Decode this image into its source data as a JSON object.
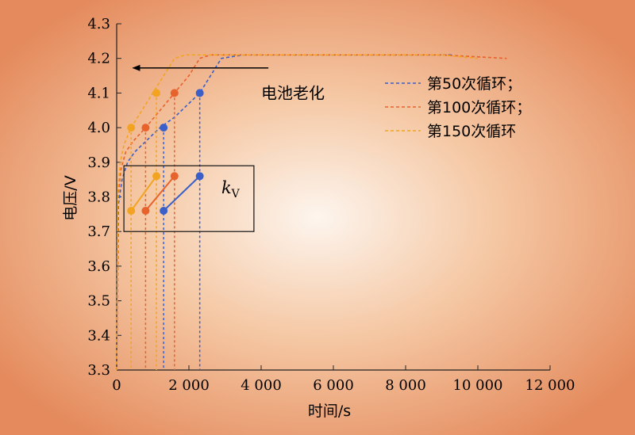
{
  "chart_data": {
    "type": "line",
    "xlabel": "时间/s",
    "ylabel": "电压/V",
    "xlim": [
      0,
      12000
    ],
    "ylim": [
      3.3,
      4.3
    ],
    "x_ticks": [
      0,
      2000,
      4000,
      6000,
      8000,
      10000,
      12000
    ],
    "x_tick_labels": [
      "0",
      "2 000",
      "4 000",
      "6 000",
      "8 000",
      "10 000",
      "12 000"
    ],
    "y_ticks": [
      3.3,
      3.4,
      3.5,
      3.6,
      3.7,
      3.8,
      3.9,
      4.0,
      4.1,
      4.2,
      4.3
    ],
    "y_tick_labels": [
      "3.3",
      "3.4",
      "3.5",
      "3.6",
      "3.7",
      "3.8",
      "3.9",
      "4.0",
      "4.1",
      "4.2",
      "4.3"
    ],
    "grid": false,
    "legend_position": "top-right",
    "series": [
      {
        "name": "第50次循环；",
        "color": "#3a5fc8",
        "x": [
          0,
          50,
          150,
          300,
          500,
          800,
          1200,
          1600,
          2000,
          2300,
          2600,
          2900,
          3500,
          5000,
          7000,
          9000,
          9300
        ],
        "y": [
          3.3,
          3.78,
          3.85,
          3.9,
          3.93,
          3.96,
          4.0,
          4.03,
          4.07,
          4.1,
          4.15,
          4.2,
          4.21,
          4.21,
          4.21,
          4.21,
          4.21
        ]
      },
      {
        "name": "第100次循环；",
        "color": "#e8622c",
        "x": [
          0,
          40,
          120,
          250,
          450,
          800,
          1200,
          1600,
          2000,
          2300,
          2600,
          3500,
          5000,
          7000,
          9000,
          10800
        ],
        "y": [
          3.3,
          3.8,
          3.88,
          3.93,
          3.96,
          4.0,
          4.05,
          4.1,
          4.15,
          4.2,
          4.21,
          4.21,
          4.21,
          4.21,
          4.21,
          4.2
        ]
      },
      {
        "name": "第150次循环",
        "color": "#f2a421",
        "x": [
          0,
          30,
          100,
          200,
          400,
          700,
          1000,
          1300,
          1600,
          1900,
          2200,
          3000,
          5000,
          7000,
          9000,
          10000
        ],
        "y": [
          3.3,
          3.82,
          3.9,
          3.95,
          4.0,
          4.05,
          4.1,
          4.15,
          4.2,
          4.21,
          4.21,
          4.21,
          4.21,
          4.21,
          4.21,
          4.2
        ]
      }
    ],
    "markers": [
      {
        "series": 0,
        "x": 1300,
        "y": 4.0
      },
      {
        "series": 0,
        "x": 2300,
        "y": 4.1
      },
      {
        "series": 1,
        "x": 800,
        "y": 4.0
      },
      {
        "series": 1,
        "x": 1600,
        "y": 4.1
      },
      {
        "series": 2,
        "x": 400,
        "y": 4.0
      },
      {
        "series": 2,
        "x": 1100,
        "y": 4.1
      }
    ],
    "inset": {
      "label_letter": "k",
      "label_sub": "V",
      "x_range": [
        200,
        3800
      ],
      "y_range": [
        3.7,
        3.89
      ],
      "slopes": [
        {
          "series": 0,
          "x0": 1300,
          "y0": 3.76,
          "x1": 2300,
          "y1": 3.86
        },
        {
          "series": 1,
          "x0": 800,
          "y0": 3.76,
          "x1": 1600,
          "y1": 3.86
        },
        {
          "series": 2,
          "x0": 400,
          "y0": 3.76,
          "x1": 1100,
          "y1": 3.86
        }
      ],
      "label_x": 2900,
      "label_y": 3.81
    },
    "annotation": {
      "text": "电池老化",
      "arrow_from": [
        4200,
        4.2
      ],
      "arrow_to": [
        450,
        4.2
      ],
      "text_x": 4000,
      "text_y": 4.1
    },
    "colors": {
      "series_50": "#3a5fc8",
      "series_100": "#e8622c",
      "series_150": "#f2a421",
      "background_center": "#fdf4ec",
      "background_edge": "#e8946a"
    }
  }
}
